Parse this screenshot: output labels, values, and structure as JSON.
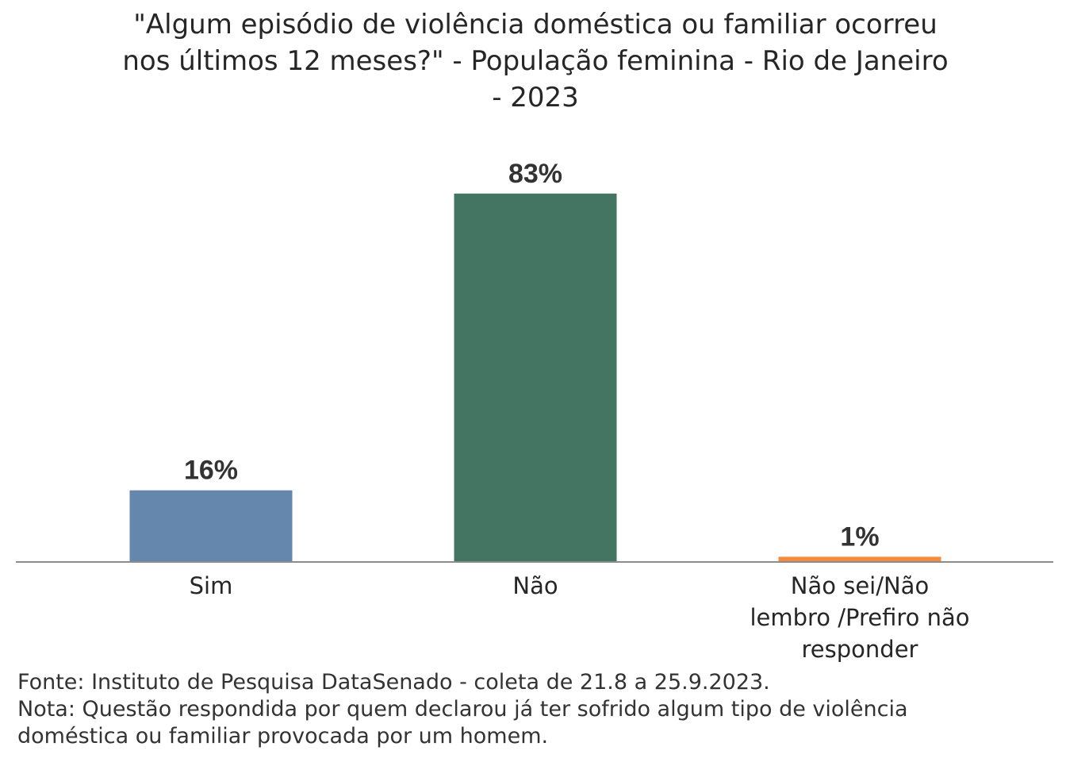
{
  "chart_data": {
    "type": "bar",
    "title": "\"Algum episódio de violência doméstica ou familiar ocorreu nos últimos 12 meses?\" - População feminina - Rio de Janeiro - 2023",
    "title_lines": [
      "\"Algum episódio de violência doméstica ou familiar ocorreu",
      "nos últimos 12 meses?\" - População feminina - Rio de Janeiro",
      "- 2023"
    ],
    "categories": [
      "Sim",
      "Não",
      "Não sei/Não lembro /Prefiro não responder"
    ],
    "category_lines": [
      [
        "Sim"
      ],
      [
        "Não"
      ],
      [
        "Não sei/Não",
        "lembro /Prefiro não",
        "responder"
      ]
    ],
    "values": [
      16,
      83,
      1
    ],
    "labels": [
      "16%",
      "83%",
      "1%"
    ],
    "colors": [
      "#6586AD",
      "#447562",
      "#F58B3B"
    ],
    "ylim": [
      0,
      100
    ],
    "grid": false,
    "xlabel": "",
    "ylabel": ""
  },
  "footer": {
    "source": "Fonte: Instituto de Pesquisa DataSenado - coleta de 21.8 a 25.9.2023.",
    "note_line1": "Nota: Questão respondida por quem declarou já ter sofrido algum tipo de violência",
    "note_line2": "doméstica ou familiar provocada por um homem."
  }
}
